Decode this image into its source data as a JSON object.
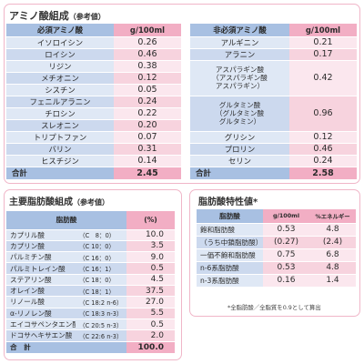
{
  "amino": {
    "title": "アミノ酸組成",
    "note": "（参考値）",
    "essential_header": "必須アミノ酸",
    "nonessential_header": "非必須アミノ酸",
    "unit_header": "g/100ml",
    "rows": [
      {
        "e_name": "イソロイシン",
        "e_val": "0.26",
        "n_name": "アルギニン",
        "n_val": "0.21"
      },
      {
        "e_name": "ロイシン",
        "e_val": "0.46",
        "n_name": "アラニン",
        "n_val": "0.17"
      },
      {
        "e_name": "リジン",
        "e_val": "0.38"
      },
      {
        "e_name": "メチオニン",
        "e_val": "0.12"
      },
      {
        "e_name": "シスチン",
        "e_val": "0.05"
      },
      {
        "e_name": "フェニルアラニン",
        "e_val": "0.24"
      },
      {
        "e_name": "チロシン",
        "e_val": "0.22"
      },
      {
        "e_name": "スレオニン",
        "e_val": "0.20"
      },
      {
        "e_name": "トリプトファン",
        "e_val": "0.07",
        "n_name": "グリシン",
        "n_val": "0.12"
      },
      {
        "e_name": "バリン",
        "e_val": "0.31",
        "n_name": "プロリン",
        "n_val": "0.46"
      },
      {
        "e_name": "ヒスチジン",
        "e_val": "0.14",
        "n_name": "セリン",
        "n_val": "0.24"
      }
    ],
    "asp_line1": "アスパラギン酸",
    "asp_line2": "（アスパラギン酸",
    "asp_line3": "アスパラギン）",
    "asp_val": "0.42",
    "glu_line1": "グルタミン酸",
    "glu_line2": "（グルタミン酸",
    "glu_line3": "グルタミン）",
    "glu_val": "0.96",
    "total_label": "合計",
    "total_essential": "2.45",
    "total_nonessential": "2.58"
  },
  "fatty": {
    "title": "主要脂肪酸組成",
    "note": "（参考値）",
    "header_name": "脂肪酸",
    "header_unit": "(%)",
    "rows": [
      {
        "name": "カプリル酸",
        "carbon": "（C　8：0）",
        "val": "10.0"
      },
      {
        "name": "カプリン酸",
        "carbon": "（C 10：0）",
        "val": "3.5"
      },
      {
        "name": "パルミチン酸",
        "carbon": "（C 16：0）",
        "val": "9.0"
      },
      {
        "name": "パルミトレイン酸",
        "carbon": "（C 16：1）",
        "val": "0.5"
      },
      {
        "name": "ステアリン酸",
        "carbon": "（C 18：0）",
        "val": "4.5"
      },
      {
        "name": "オレイン酸",
        "carbon": "（C 18：1）",
        "val": "37.5"
      },
      {
        "name": "リノール酸",
        "carbon": "（C 18:2 n-6）",
        "val": "27.0"
      },
      {
        "name": "α-リノレン酸",
        "carbon": "（C 18:3 n-3）",
        "val": "5.5"
      },
      {
        "name": "エイコサペンタエン酸",
        "carbon": "（C 20:5 n-3）",
        "val": "0.5"
      },
      {
        "name": "ドコサヘキサエン酸",
        "carbon": "（C 22:6 n-3）",
        "val": "2.0"
      }
    ],
    "total_label": "合　計",
    "total_val": "100.0"
  },
  "props": {
    "title": "脂肪酸特性値",
    "title_mark": "*",
    "header_name": "脂肪酸",
    "header_unit": "g/100ml",
    "header_energy": "%エネルギー",
    "rows": [
      {
        "name": "飽和脂肪酸",
        "g": "0.53",
        "e": "4.8"
      },
      {
        "name": "（うち中鎖脂肪酸）",
        "g": "(0.27)",
        "e": "(2.4)"
      },
      {
        "name": "一価不飽和脂肪酸",
        "g": "0.75",
        "e": "6.8"
      },
      {
        "name": "n-6系脂肪酸",
        "g": "0.53",
        "e": "4.8"
      },
      {
        "name": "n-3系脂肪酸",
        "g": "0.16",
        "e": "1.4"
      }
    ],
    "footnote": "*全脂肪酸／全脂質を0.9として算出"
  }
}
